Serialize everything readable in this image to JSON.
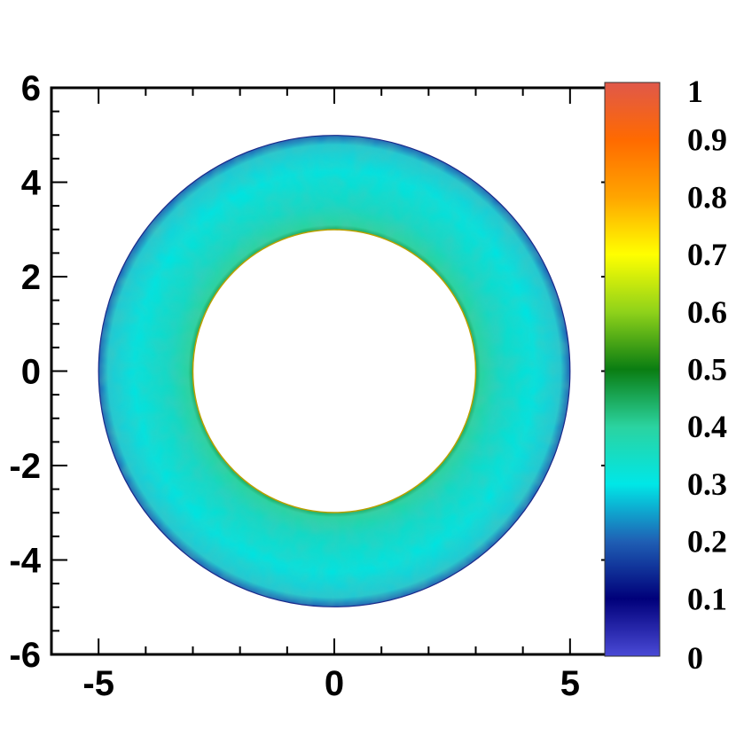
{
  "chart_data": {
    "type": "heatmap",
    "title": "",
    "xlabel": "",
    "ylabel": "",
    "xlim": [
      -6,
      6
    ],
    "ylim": [
      -6,
      6
    ],
    "x_ticks": [
      -5,
      0,
      5
    ],
    "y_ticks": [
      6,
      4,
      2,
      0,
      -2,
      -4,
      -6
    ],
    "annulus": {
      "inner_radius": 3,
      "outer_radius": 5,
      "typical_value": 0.35,
      "inner_edge_value": 0.5,
      "outer_edge_value": 0.2
    },
    "colorbar": {
      "range": [
        0,
        1
      ],
      "ticks": [
        "1",
        "0.9",
        "0.8",
        "0.7",
        "0.6",
        "0.5",
        "0.4",
        "0.3",
        "0.2",
        "0.1",
        "0"
      ],
      "stops": [
        {
          "value": 0.0,
          "color": "#4a4ad6"
        },
        {
          "value": 0.1,
          "color": "#00007a"
        },
        {
          "value": 0.2,
          "color": "#1f5fb4"
        },
        {
          "value": 0.3,
          "color": "#00e7e7"
        },
        {
          "value": 0.4,
          "color": "#2bd3a0"
        },
        {
          "value": 0.5,
          "color": "#0a7d12"
        },
        {
          "value": 0.6,
          "color": "#8fd21a"
        },
        {
          "value": 0.7,
          "color": "#ffff00"
        },
        {
          "value": 0.8,
          "color": "#ffa500"
        },
        {
          "value": 0.9,
          "color": "#ff6a00"
        },
        {
          "value": 1.0,
          "color": "#e0584a"
        }
      ]
    }
  }
}
